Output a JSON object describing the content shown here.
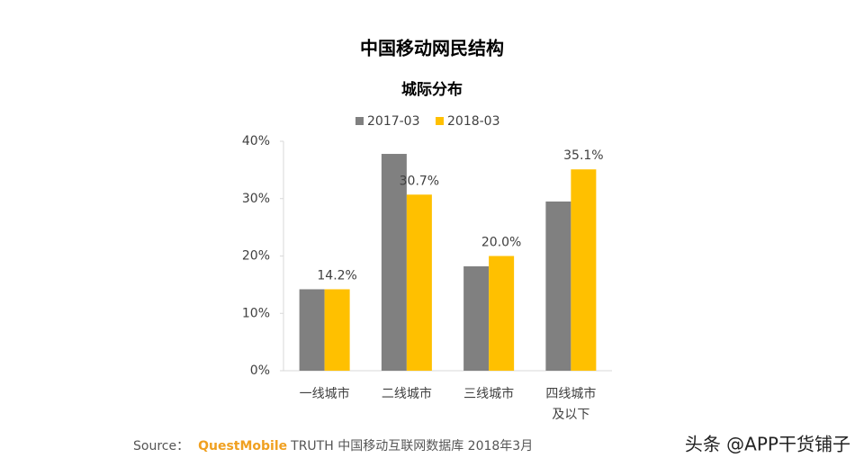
{
  "chart_data": {
    "type": "bar",
    "title": "中国移动网民结构",
    "subtitle": "城际分布",
    "categories": [
      "一线城市",
      "二线城市",
      "三线城市",
      "四线城市\n及以下"
    ],
    "series": [
      {
        "name": "2017-03",
        "color": "#808080",
        "values": [
          14.2,
          37.8,
          18.2,
          29.5
        ]
      },
      {
        "name": "2018-03",
        "color": "#ffc000",
        "values": [
          14.2,
          30.7,
          20.0,
          35.1
        ],
        "value_labels": [
          "14.2%",
          "30.7%",
          "20.0%",
          "35.1%"
        ]
      }
    ],
    "ylim": [
      0,
      40
    ],
    "yticks": [
      {
        "value": 0,
        "label": "0%"
      },
      {
        "value": 10,
        "label": "10%"
      },
      {
        "value": 20,
        "label": "20%"
      },
      {
        "value": 30,
        "label": "30%"
      },
      {
        "value": 40,
        "label": "40%"
      }
    ],
    "grid": false,
    "legend": "top"
  },
  "source": {
    "prefix": "Source：",
    "brand": "QuestMobile",
    "text": "TRUTH 中国移动互联网数据库 2018年3月"
  },
  "watermark": "头条 @APP干货铺子"
}
